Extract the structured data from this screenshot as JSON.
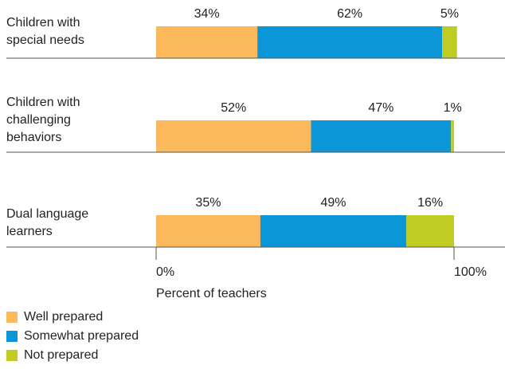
{
  "chart_data": {
    "type": "bar",
    "orientation": "horizontal",
    "stacked": true,
    "categories": [
      "Children with special needs",
      "Children with challenging behaviors",
      "Dual language learners"
    ],
    "series": [
      {
        "name": "Well prepared",
        "color": "#fbb95c",
        "values": [
          34,
          52,
          35
        ],
        "value_labels": [
          "34%",
          "52%",
          "35%"
        ]
      },
      {
        "name": "Somewhat prepared",
        "color": "#0a96d7",
        "values": [
          62,
          47,
          49
        ],
        "value_labels": [
          "62%",
          "47%",
          "49%"
        ]
      },
      {
        "name": "Not prepared",
        "color": "#bfcc24",
        "values": [
          5,
          1,
          16
        ],
        "value_labels": [
          "5%",
          "1%",
          "16%"
        ]
      }
    ],
    "xlim": [
      0,
      100
    ],
    "xticks": [
      {
        "value": 0,
        "label": "0%"
      },
      {
        "value": 100,
        "label": "100%"
      }
    ],
    "xlabel": "Percent of teachers",
    "legend": "bottom-left"
  }
}
